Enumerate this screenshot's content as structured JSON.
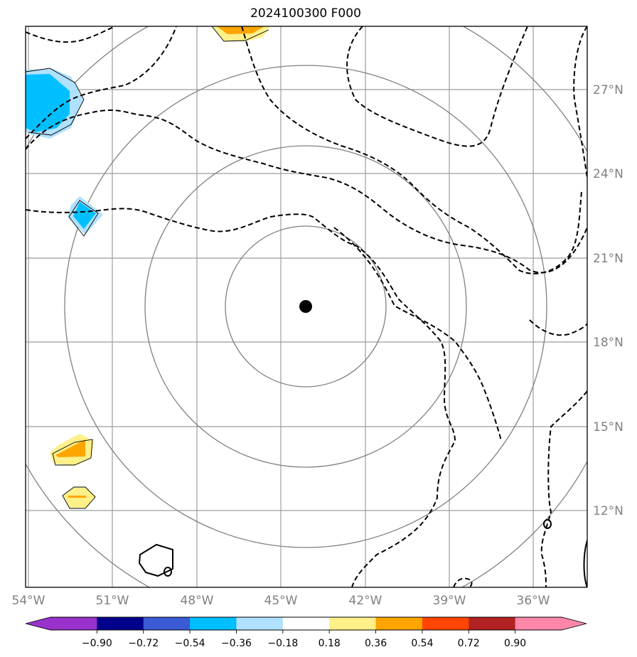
{
  "title": "2024100300 F000",
  "map": {
    "lon_labels": [
      "54°W",
      "51°W",
      "48°W",
      "45°W",
      "42°W",
      "39°W",
      "36°W"
    ],
    "lat_labels": [
      "27°N",
      "24°N",
      "21°N",
      "18°N",
      "15°N",
      "12°N"
    ],
    "lon_range": [
      -54,
      -34
    ],
    "lat_range": [
      9,
      29
    ],
    "center_marker": {
      "lon": -44.1,
      "lat": 19.2
    }
  },
  "colorbar": {
    "tick_labels": [
      "−0.90",
      "−0.72",
      "−0.54",
      "−0.36",
      "−0.18",
      "0.18",
      "0.36",
      "0.54",
      "0.72",
      "0.90"
    ],
    "colors": [
      "#9932cc",
      "#00008b",
      "#3a5bd3",
      "#00bfff",
      "#b0e2ff",
      "#ffffff",
      "#fff08a",
      "#ffa500",
      "#ff4500",
      "#b22222",
      "#ff88aa"
    ]
  }
}
